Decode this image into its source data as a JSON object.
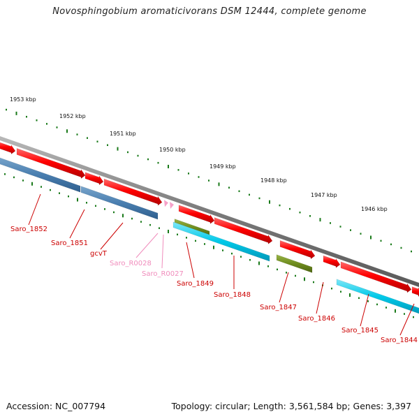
{
  "title": "Novosphingobium aromaticivorans DSM 12444, complete genome",
  "footer": {
    "accession": "Accession: NC_007794",
    "topology": "Topology: circular; Length: 3,561,584 bp; Genes: 3,397"
  },
  "colors": {
    "backbone": "#808080",
    "cds_forward": "#ee0000",
    "cds_reverse_blue": "#4a7fb0",
    "cds_reverse_cyan": "#00c8e8",
    "cds_reverse_olive": "#6e8c1e",
    "rna": "#f5a0c8",
    "tick": "#1a7a1a",
    "gene_label": "#cc0000",
    "rna_label": "#f08cbc"
  },
  "scale": {
    "unit": "kbp",
    "labels": [
      "1953 kbp",
      "1952 kbp",
      "1951 kbp",
      "1950 kbp",
      "1949 kbp",
      "1948 kbp",
      "1947 kbp",
      "1946 kbp"
    ]
  },
  "genes": [
    {
      "label": "Saro_1852",
      "type": "cds"
    },
    {
      "label": "Saro_1851",
      "type": "cds"
    },
    {
      "label": "gcvT",
      "type": "cds"
    },
    {
      "label": "Saro_R0028",
      "type": "rna"
    },
    {
      "label": "Saro_R0027",
      "type": "rna"
    },
    {
      "label": "Saro_1849",
      "type": "cds"
    },
    {
      "label": "Saro_1848",
      "type": "cds"
    },
    {
      "label": "Saro_1847",
      "type": "cds"
    },
    {
      "label": "Saro_1846",
      "type": "cds"
    },
    {
      "label": "Saro_1845",
      "type": "cds"
    },
    {
      "label": "Saro_1844",
      "type": "cds"
    }
  ]
}
